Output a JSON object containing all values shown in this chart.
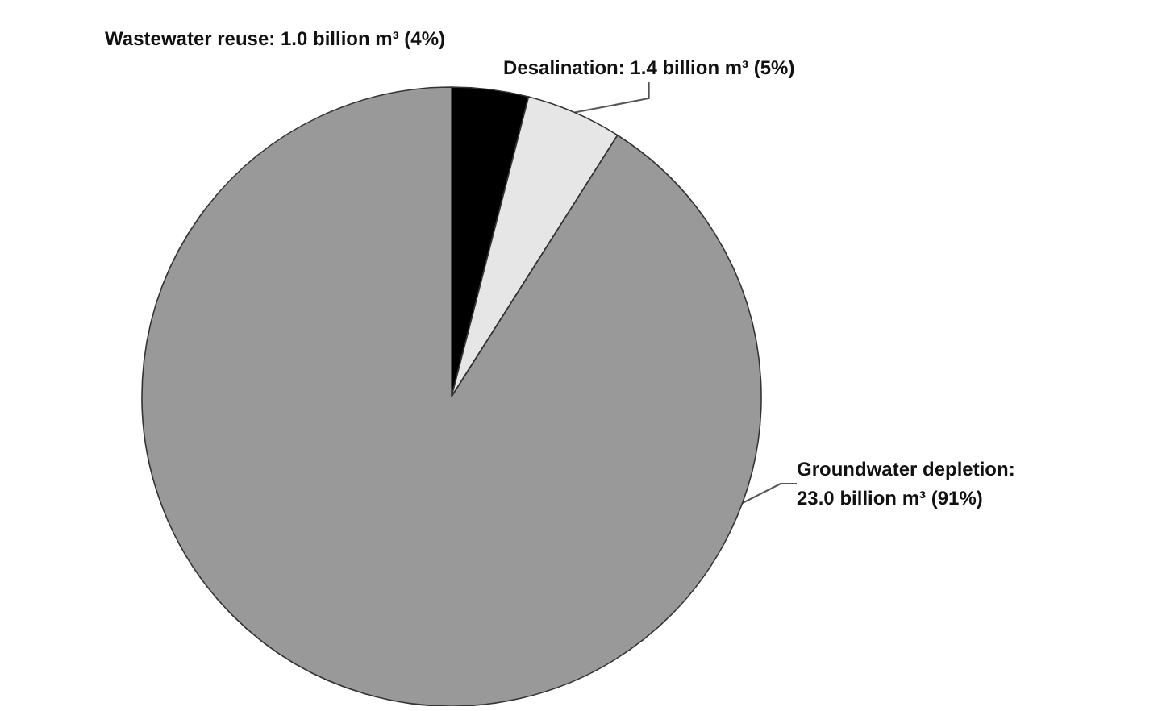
{
  "chart_data": {
    "type": "pie",
    "categories": [
      "Wastewater reuse: 1.0 billion m³ (4%)",
      "Desalination: 1.4 billion m³ (5%)",
      "Groundwater depletion:\n23.0 billion m³ (91%)"
    ],
    "values": [
      4,
      5,
      91
    ],
    "colors": [
      "#000000",
      "#e6e6e6",
      "#999999"
    ],
    "legend": false
  }
}
